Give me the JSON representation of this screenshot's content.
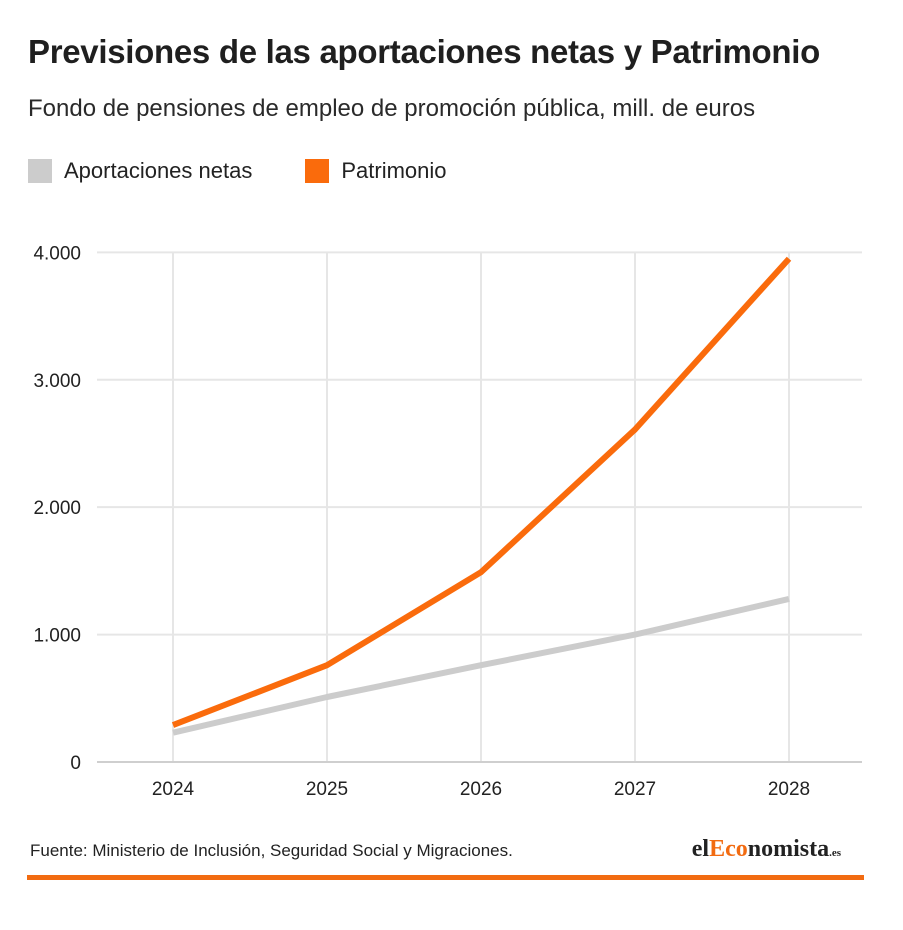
{
  "title": "Previsiones de las aportaciones netas y Patrimonio",
  "subtitle": "Fondo de pensiones de empleo de promoción pública, mill. de euros",
  "footer": {
    "source": "Fuente: Ministerio de Inclusión, Seguridad Social y Migraciones.",
    "brand_prefix": "el",
    "brand_highlight": "Eco",
    "brand_suffix": "nomista",
    "brand_domain": ".es"
  },
  "colors": {
    "aportaciones": "#cccccc",
    "patrimonio": "#fa6b0c",
    "accent": "#f26b11"
  },
  "chart_data": {
    "type": "line",
    "title": "Previsiones de las aportaciones netas y Patrimonio",
    "subtitle": "Fondo de pensiones de empleo de promoción pública, mill. de euros",
    "categories": [
      "2024",
      "2025",
      "2026",
      "2027",
      "2028"
    ],
    "series": [
      {
        "name": "Aportaciones netas",
        "values": [
          230,
          510,
          760,
          1000,
          1280
        ]
      },
      {
        "name": "Patrimonio",
        "values": [
          290,
          760,
          1490,
          2610,
          3950
        ]
      }
    ],
    "ylim": [
      0,
      4050
    ],
    "yticks": [
      0,
      1000,
      2000,
      3000,
      4000
    ],
    "ytick_labels": [
      "0",
      "1.000",
      "2.000",
      "3.000",
      "4.000"
    ],
    "grid": true,
    "legend_position": "top-left"
  }
}
